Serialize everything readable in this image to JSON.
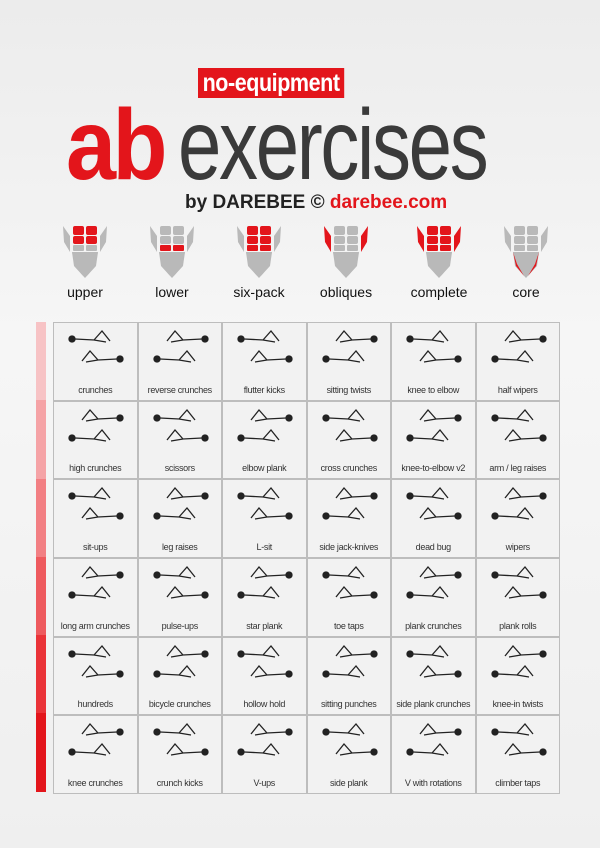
{
  "header": {
    "tag": "no-equipment",
    "title_accent": "ab",
    "title_main": "exercises",
    "byline": "by DAREBEE ©",
    "url": "darebee.com"
  },
  "colors": {
    "accent": "#e3151b",
    "muscle_gray": "#b9b9b9",
    "text_dark": "#3a3a3a"
  },
  "muscle_groups": [
    {
      "label": "upper",
      "highlight": [
        "upper"
      ]
    },
    {
      "label": "lower",
      "highlight": [
        "lower"
      ]
    },
    {
      "label": "six-pack",
      "highlight": [
        "upper",
        "lower"
      ]
    },
    {
      "label": "obliques",
      "highlight": [
        "obliques"
      ]
    },
    {
      "label": "complete",
      "highlight": [
        "upper",
        "lower",
        "obliques"
      ]
    },
    {
      "label": "core",
      "highlight": [
        "core"
      ]
    }
  ],
  "difficulty_bar_colors": [
    "#f7c3c5",
    "#f5a3a6",
    "#f27f83",
    "#ee5a5e",
    "#ea3338",
    "#e3151b"
  ],
  "exercises": [
    [
      "crunches",
      "reverse crunches",
      "flutter kicks",
      "sitting twists",
      "knee to elbow",
      "half wipers"
    ],
    [
      "high crunches",
      "scissors",
      "elbow plank",
      "cross crunches",
      "knee-to-elbow v2",
      "arm / leg raises"
    ],
    [
      "sit-ups",
      "leg raises",
      "L-sit",
      "side jack-knives",
      "dead bug",
      "wipers"
    ],
    [
      "long arm crunches",
      "pulse-ups",
      "star plank",
      "toe taps",
      "plank crunches",
      "plank rolls"
    ],
    [
      "hundreds",
      "bicycle crunches",
      "hollow hold",
      "sitting punches",
      "side plank crunches",
      "knee-in twists"
    ],
    [
      "knee crunches",
      "crunch kicks",
      "V-ups",
      "side plank",
      "V with rotations",
      "climber taps"
    ]
  ]
}
